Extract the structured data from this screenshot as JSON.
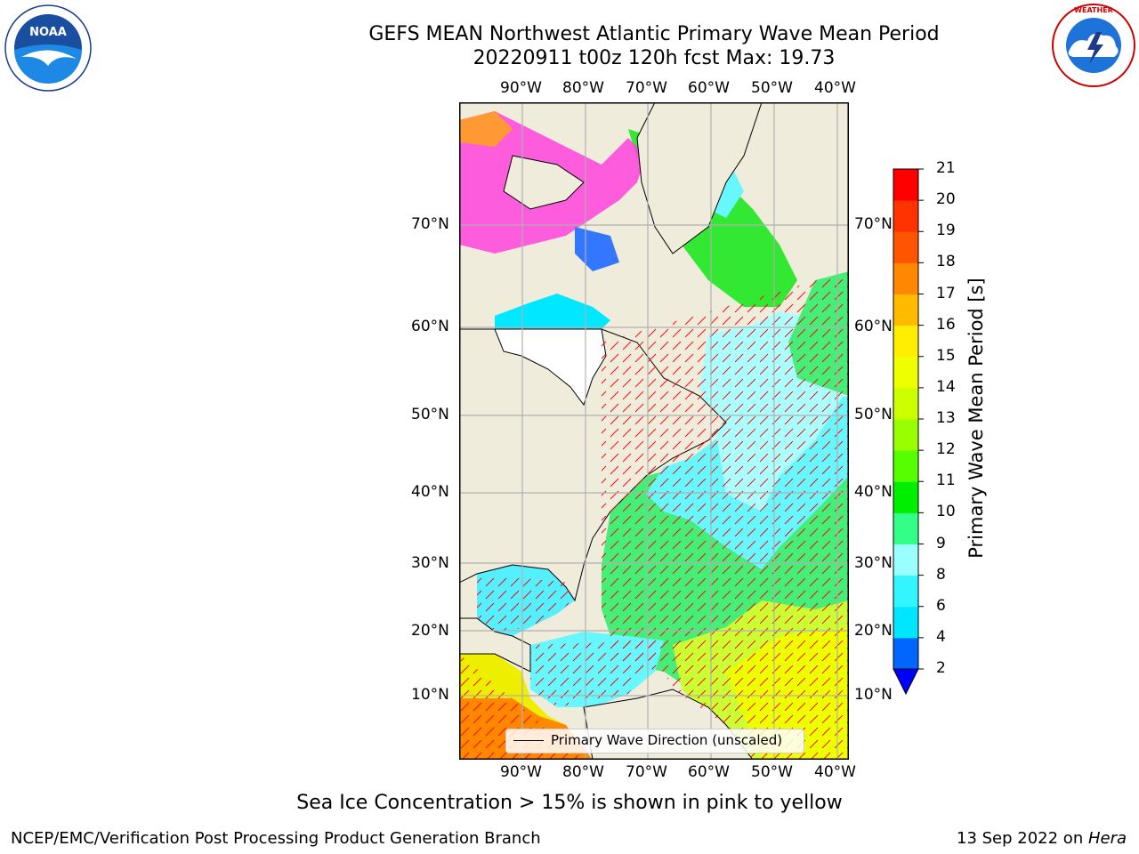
{
  "header": {
    "title_line1": "GEFS MEAN Northwest Atlantic Primary Wave Mean Period",
    "title_line2": "20220911 t00z 120h fcst   Max: 19.73"
  },
  "logos": {
    "left": {
      "name": "NOAA",
      "ring_text": "NATIONAL OCEANIC AND ATMOSPHERIC ADMINISTRATION · U.S. DEPARTMENT OF COMMERCE"
    },
    "right": {
      "name": "NATIONAL WEATHER SERVICE"
    }
  },
  "map": {
    "lon_ticks": [
      "90°W",
      "80°W",
      "70°W",
      "60°W",
      "50°W",
      "40°W"
    ],
    "lat_ticks": [
      "70°N",
      "60°N",
      "50°N",
      "40°N",
      "30°N",
      "20°N",
      "10°N"
    ],
    "legend_label": "Primary Wave Direction (unscaled)",
    "land_color": "#efecdc",
    "arrow_color": "#ff0000",
    "grid_color": "#b0b0b0"
  },
  "colorbar": {
    "label": "Primary Wave Mean Period [s]",
    "ticks": [
      "2",
      "4",
      "6",
      "8",
      "9",
      "10",
      "11",
      "12",
      "13",
      "14",
      "15",
      "16",
      "17",
      "18",
      "19",
      "20",
      "21"
    ],
    "colors": [
      "#0066ff",
      "#00e6ff",
      "#33f5ff",
      "#99ffff",
      "#33ff88",
      "#00ee00",
      "#55ff00",
      "#99ff00",
      "#ccff00",
      "#eeff00",
      "#ffee00",
      "#ffbb00",
      "#ff8800",
      "#ff5500",
      "#ff3300",
      "#ff0000"
    ],
    "under_color": "#0000ff"
  },
  "caption": "Sea Ice Concentration > 15% is shown in pink to yellow",
  "footer": {
    "left": "NCEP/EMC/Verification Post Processing Product Generation Branch",
    "right_prefix": "13 Sep 2022 on ",
    "right_machine": "Hera"
  }
}
